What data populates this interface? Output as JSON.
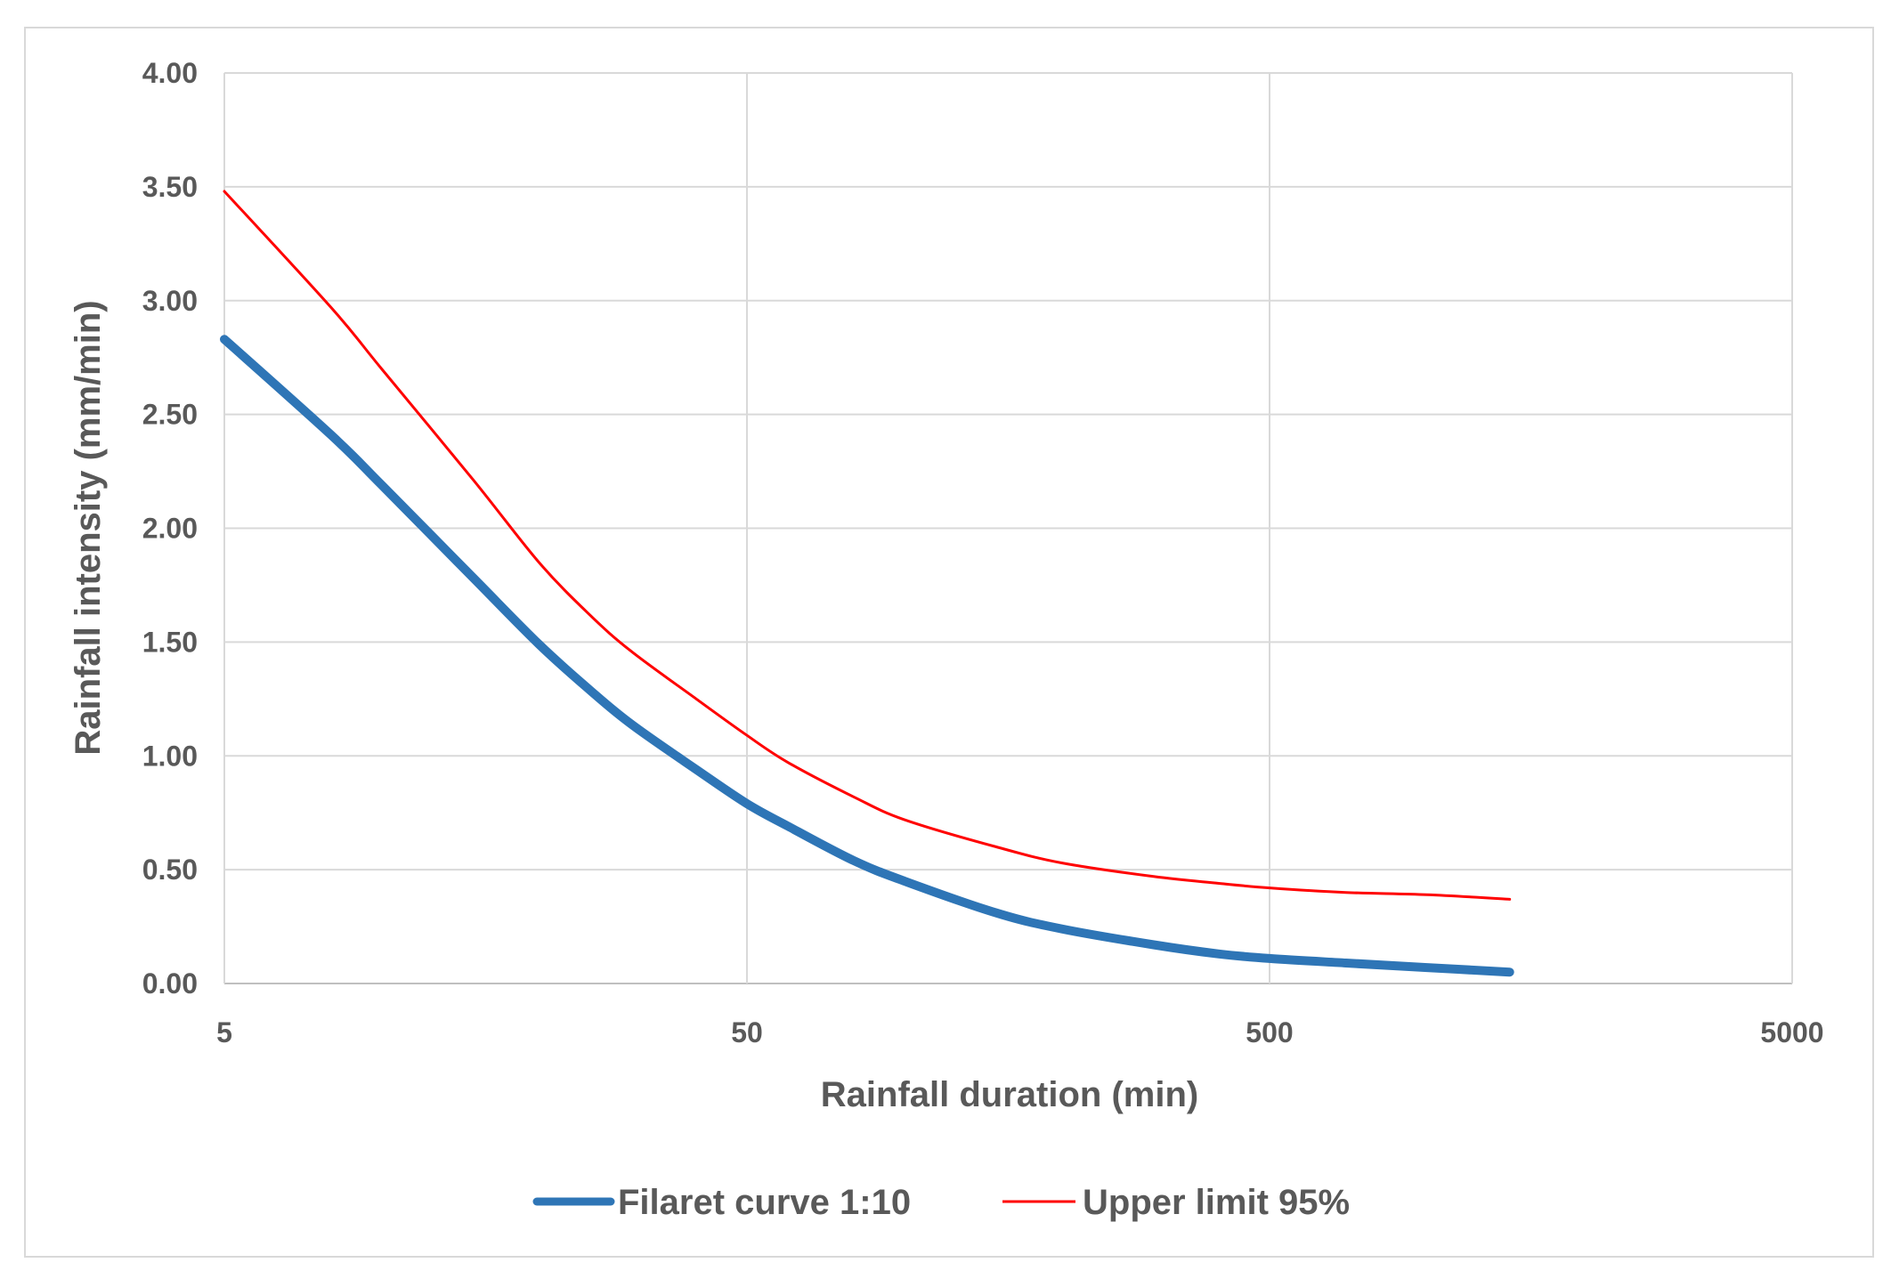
{
  "chart_data": {
    "type": "line",
    "title": "",
    "xlabel": "Rainfall duration (min)",
    "ylabel": "Rainfall intensity (mm/min)",
    "xscale": "log",
    "xlim": [
      5,
      5000
    ],
    "ylim": [
      0,
      4
    ],
    "xticks": [
      5,
      50,
      500,
      5000
    ],
    "xtick_labels": [
      "5",
      "50",
      "500",
      "5000"
    ],
    "yticks": [
      0,
      0.5,
      1,
      1.5,
      2,
      2.5,
      3,
      3.5,
      4
    ],
    "ytick_labels": [
      "0.00",
      "0.50",
      "1.00",
      "1.50",
      "2.00",
      "2.50",
      "3.00",
      "3.50",
      "4.00"
    ],
    "grid": true,
    "legend_position": "bottom",
    "series": [
      {
        "name": "Filaret curve 1:10",
        "color": "#2e75b6",
        "x": [
          5,
          8,
          10,
          15,
          20,
          25,
          30,
          40,
          50,
          60,
          80,
          100,
          150,
          200,
          300,
          400,
          500,
          700,
          1000,
          1440
        ],
        "y": [
          2.83,
          2.41,
          2.19,
          1.78,
          1.49,
          1.29,
          1.14,
          0.94,
          0.79,
          0.69,
          0.54,
          0.45,
          0.31,
          0.24,
          0.17,
          0.13,
          0.11,
          0.09,
          0.07,
          0.05
        ]
      },
      {
        "name": "Upper limit 95%",
        "color": "#ff0000",
        "x": [
          5,
          8,
          10,
          15,
          20,
          25,
          30,
          40,
          50,
          60,
          80,
          100,
          150,
          200,
          300,
          400,
          500,
          700,
          1000,
          1440
        ],
        "y": [
          3.48,
          2.97,
          2.7,
          2.21,
          1.85,
          1.62,
          1.46,
          1.25,
          1.09,
          0.97,
          0.82,
          0.72,
          0.6,
          0.53,
          0.47,
          0.44,
          0.42,
          0.4,
          0.39,
          0.37
        ]
      }
    ]
  }
}
